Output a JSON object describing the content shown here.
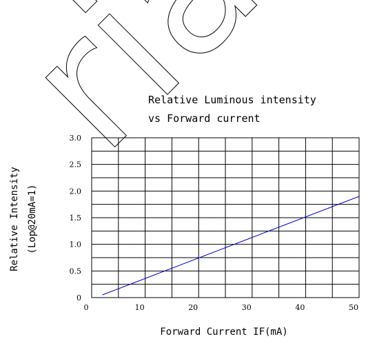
{
  "chart_data": {
    "type": "line",
    "title_lines": [
      "Relative Luminous intensity",
      "vs Forward current"
    ],
    "xlabel": "Forward Current IF(mA)",
    "ylabel_lines": [
      "Relative Intensity",
      "(Lop@20mA=1)"
    ],
    "x_ticks": [
      "0",
      "10",
      "20",
      "30",
      "40",
      "50"
    ],
    "y_ticks": [
      "0",
      "0.5",
      "1.0",
      "1.5",
      "2.0",
      "2.5",
      "3.0"
    ],
    "xlim": [
      0,
      50
    ],
    "ylim": [
      0,
      3.0
    ],
    "grid": true,
    "series": [
      {
        "color": "#0000cc",
        "x": [
          2,
          50
        ],
        "y": [
          0.05,
          1.9
        ]
      }
    ]
  },
  "watermark": {
    "text": "rial"
  }
}
